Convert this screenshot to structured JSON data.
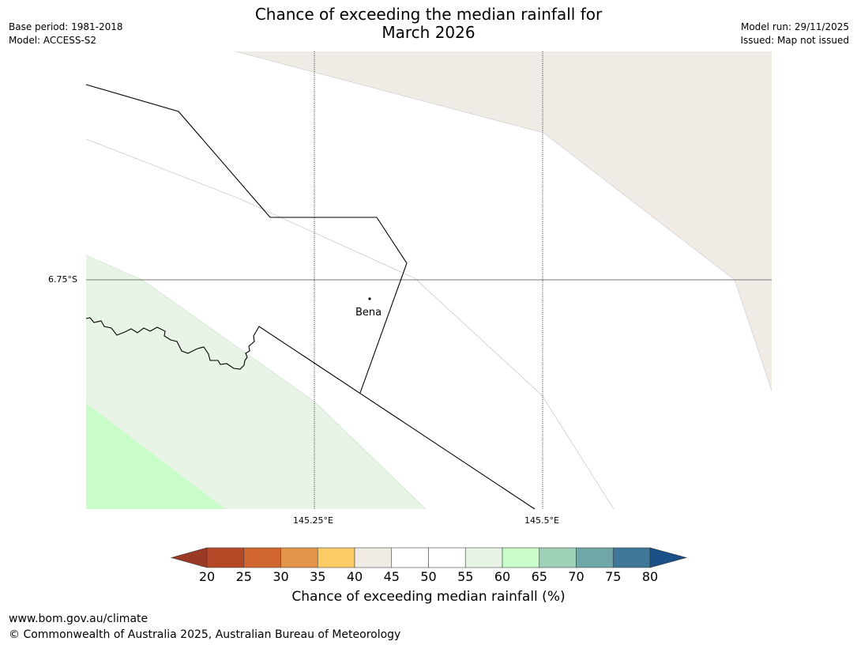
{
  "header": {
    "title_line1": "Chance of exceeding the median rainfall for",
    "title_line2": "March 2026",
    "base_period": "Base period: 1981-2018",
    "model": "Model: ACCESS-S2",
    "model_run": "Model run: 29/11/2025",
    "issued": "Issued: Map not issued"
  },
  "map": {
    "lat_label": "6.75°S",
    "lon_labels": [
      "145.25°E",
      "145.5°E"
    ],
    "town": "Bena"
  },
  "colorbar": {
    "title": "Chance of exceeding median rainfall (%)",
    "ticks": [
      "20",
      "25",
      "30",
      "35",
      "40",
      "45",
      "50",
      "55",
      "60",
      "65",
      "70",
      "75",
      "80"
    ],
    "under_color": "#9a3a24",
    "colors": [
      "#b54826",
      "#d0652f",
      "#e2954a",
      "#fdcc66",
      "#f0ebe5",
      "#ffffff",
      "#ffffff",
      "#e8f5e6",
      "#c8fcc8",
      "#9ed0b8",
      "#6fa6a8",
      "#3f7798"
    ],
    "over_color": "#1a4f88"
  },
  "map_colors": {
    "tan": "#f0ebe5",
    "light_green": "#e8f5e6",
    "green": "#c8fcc8"
  },
  "footer": {
    "url": "www.bom.gov.au/climate",
    "copyright": "© Commonwealth of Australia 2025, Australian Bureau of Meteorology"
  }
}
